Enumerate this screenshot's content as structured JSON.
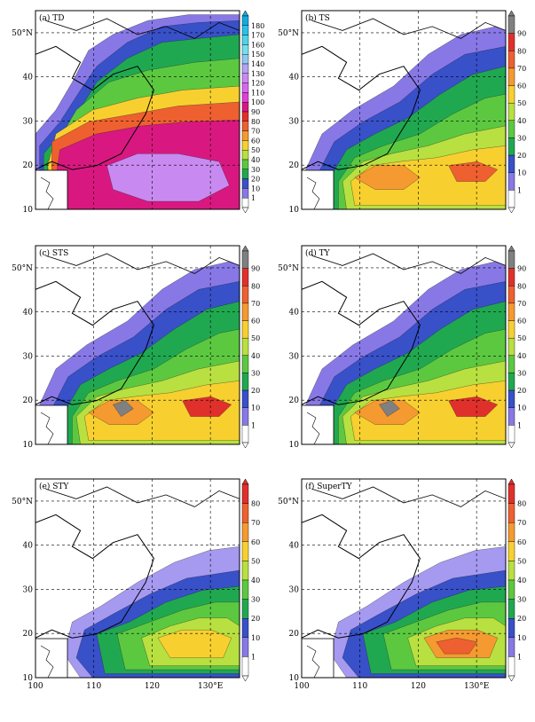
{
  "figure": {
    "lat_labels": [
      "50°N",
      "40",
      "30",
      "20",
      "10"
    ],
    "lon_labels": [
      "100",
      "110",
      "120",
      "130°E"
    ],
    "panels": [
      {
        "label": "(a) TD",
        "colorbar_ticks": [
          "180",
          "170",
          "160",
          "150",
          "140",
          "130",
          "120",
          "110",
          "100",
          "90",
          "80",
          "70",
          "60",
          "50",
          "40",
          "30",
          "20",
          "10",
          "1"
        ],
        "colorbar_colors": [
          "#15a9e0",
          "#2bc0e6",
          "#4fd3ea",
          "#71e1ee",
          "#8fc8f2",
          "#b3a3f2",
          "#c88af0",
          "#d868ee",
          "#e040d8",
          "#d81880",
          "#e0302c",
          "#ee6030",
          "#f59a30",
          "#f7d030",
          "#b8e040",
          "#5cc840",
          "#20a850",
          "#3850c8",
          "#8878e6",
          "#ffffff"
        ],
        "shading": [
          {
            "level": 1,
            "color": "#8878e6"
          },
          {
            "level": 10,
            "color": "#3850c8"
          },
          {
            "level": 20,
            "color": "#20a850"
          },
          {
            "level": 30,
            "color": "#5cc840"
          },
          {
            "level": 50,
            "color": "#f7d030"
          },
          {
            "level": 70,
            "color": "#ee6030"
          },
          {
            "level": 90,
            "color": "#d81880"
          },
          {
            "level": 110,
            "color": "#c88af0"
          }
        ]
      },
      {
        "label": "(b) TS",
        "colorbar_ticks": [
          "90",
          "80",
          "70",
          "60",
          "50",
          "40",
          "30",
          "20",
          "10",
          "1"
        ],
        "colorbar_colors": [
          "#808080",
          "#e0302c",
          "#ee6030",
          "#f59a30",
          "#f7d030",
          "#b8e040",
          "#5cc840",
          "#20a850",
          "#3850c8",
          "#8878e6",
          "#ffffff"
        ],
        "shading": [
          {
            "level": 1,
            "color": "#8878e6"
          },
          {
            "level": 10,
            "color": "#3850c8"
          },
          {
            "level": 20,
            "color": "#20a850"
          },
          {
            "level": 30,
            "color": "#5cc840"
          },
          {
            "level": 40,
            "color": "#b8e040"
          },
          {
            "level": 50,
            "color": "#f7d030"
          },
          {
            "level": 60,
            "color": "#f59a30"
          },
          {
            "level": 70,
            "color": "#ee6030"
          }
        ]
      },
      {
        "label": "(c) STS",
        "colorbar_ticks": [
          "90",
          "80",
          "70",
          "60",
          "50",
          "40",
          "30",
          "20",
          "10",
          "1"
        ],
        "colorbar_colors": [
          "#808080",
          "#e0302c",
          "#ee6030",
          "#f59a30",
          "#f7d030",
          "#b8e040",
          "#5cc840",
          "#20a850",
          "#3850c8",
          "#8878e6",
          "#ffffff"
        ],
        "shading": [
          {
            "level": 1,
            "color": "#8878e6"
          },
          {
            "level": 10,
            "color": "#3850c8"
          },
          {
            "level": 20,
            "color": "#20a850"
          },
          {
            "level": 30,
            "color": "#5cc840"
          },
          {
            "level": 40,
            "color": "#b8e040"
          },
          {
            "level": 50,
            "color": "#f7d030"
          },
          {
            "level": 60,
            "color": "#f59a30"
          },
          {
            "level": 70,
            "color": "#e0302c"
          },
          {
            "level": 90,
            "color": "#808080"
          }
        ]
      },
      {
        "label": "(d) TY",
        "colorbar_ticks": [
          "90",
          "80",
          "70",
          "60",
          "50",
          "40",
          "30",
          "20",
          "10",
          "1"
        ],
        "colorbar_colors": [
          "#808080",
          "#e0302c",
          "#ee6030",
          "#f59a30",
          "#f7d030",
          "#b8e040",
          "#5cc840",
          "#20a850",
          "#3850c8",
          "#8878e6",
          "#ffffff"
        ],
        "shading": [
          {
            "level": 1,
            "color": "#8878e6"
          },
          {
            "level": 10,
            "color": "#3850c8"
          },
          {
            "level": 20,
            "color": "#20a850"
          },
          {
            "level": 30,
            "color": "#5cc840"
          },
          {
            "level": 40,
            "color": "#b8e040"
          },
          {
            "level": 50,
            "color": "#f7d030"
          },
          {
            "level": 60,
            "color": "#f59a30"
          },
          {
            "level": 70,
            "color": "#e0302c"
          },
          {
            "level": 90,
            "color": "#808080"
          }
        ]
      },
      {
        "label": "(e) STY",
        "colorbar_ticks": [
          "80",
          "70",
          "60",
          "50",
          "40",
          "30",
          "20",
          "10",
          "1"
        ],
        "colorbar_colors": [
          "#e0302c",
          "#ee6030",
          "#f59a30",
          "#f7d030",
          "#b8e040",
          "#5cc840",
          "#20a850",
          "#3850c8",
          "#8878e6",
          "#ffffff"
        ],
        "shading": [
          {
            "level": 1,
            "color": "#a59af0"
          },
          {
            "level": 10,
            "color": "#3850c8"
          },
          {
            "level": 20,
            "color": "#20a850"
          },
          {
            "level": 30,
            "color": "#5cc840"
          },
          {
            "level": 40,
            "color": "#b8e040"
          },
          {
            "level": 50,
            "color": "#f7d030"
          }
        ]
      },
      {
        "label": "(f) SuperTY",
        "colorbar_ticks": [
          "80",
          "70",
          "60",
          "50",
          "40",
          "30",
          "20",
          "10",
          "1"
        ],
        "colorbar_colors": [
          "#e0302c",
          "#ee6030",
          "#f59a30",
          "#f7d030",
          "#b8e040",
          "#5cc840",
          "#20a850",
          "#3850c8",
          "#8878e6",
          "#ffffff"
        ],
        "shading": [
          {
            "level": 1,
            "color": "#a59af0"
          },
          {
            "level": 10,
            "color": "#3850c8"
          },
          {
            "level": 20,
            "color": "#20a850"
          },
          {
            "level": 30,
            "color": "#5cc840"
          },
          {
            "level": 40,
            "color": "#b8e040"
          },
          {
            "level": 50,
            "color": "#f59a30"
          },
          {
            "level": 60,
            "color": "#ee6030"
          }
        ]
      }
    ]
  }
}
